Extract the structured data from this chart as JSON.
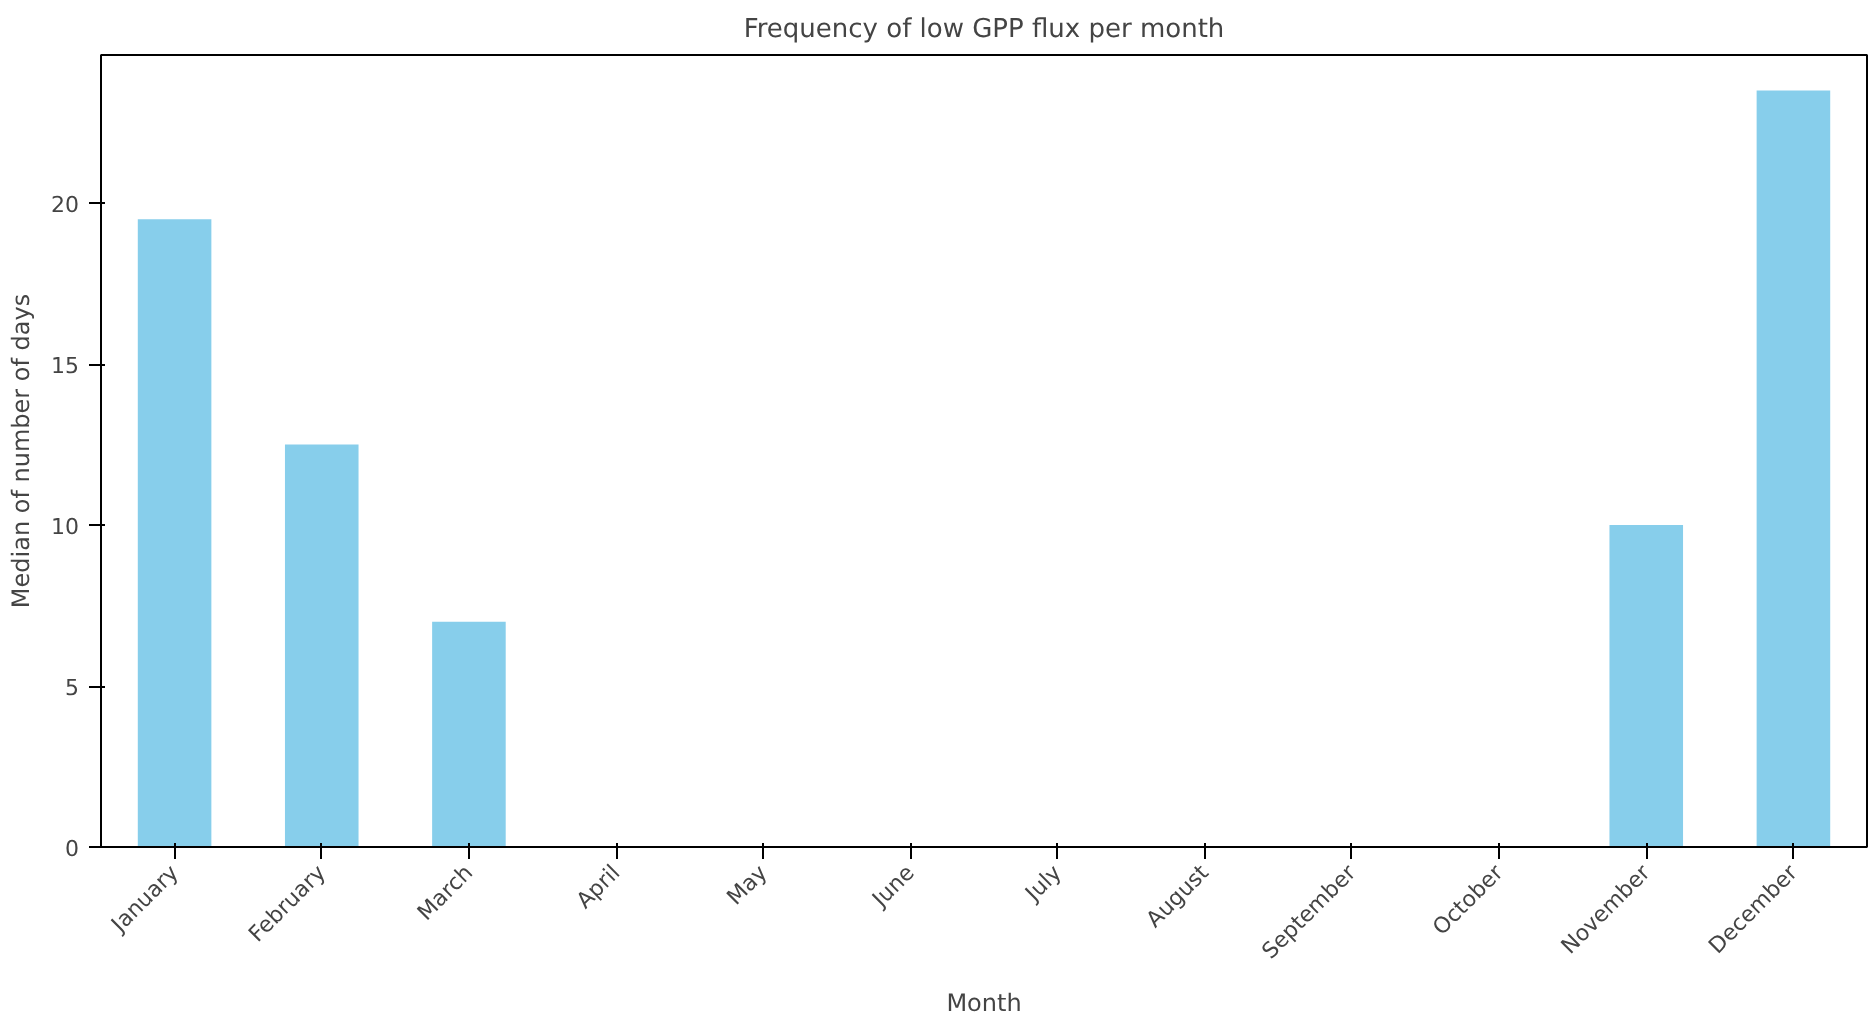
{
  "chart_data": {
    "type": "bar",
    "title": "Frequency of low GPP flux per month",
    "xlabel": "Month",
    "ylabel": "Median of number of days",
    "categories": [
      "January",
      "February",
      "March",
      "April",
      "May",
      "June",
      "July",
      "August",
      "September",
      "October",
      "November",
      "December"
    ],
    "values": [
      19.5,
      12.5,
      7,
      0,
      0,
      0,
      0,
      0,
      0,
      0,
      10,
      23.5
    ],
    "color": "#87ceeb",
    "ylim": [
      0,
      24.6
    ],
    "yticks": [
      0,
      5,
      10,
      15,
      20
    ],
    "grid": false
  }
}
